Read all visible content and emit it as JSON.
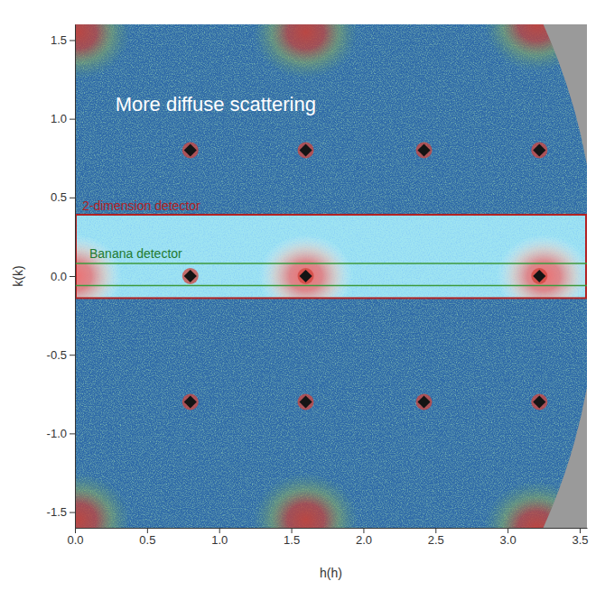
{
  "chart_data": {
    "type": "scatter",
    "x_label": "h(h)",
    "y_label": "k(k)",
    "xlim": [
      0,
      3.55
    ],
    "ylim": [
      -1.6,
      1.6
    ],
    "xticks": [
      {
        "value": 0,
        "label": "0.0"
      },
      0.5,
      {
        "value": 1,
        "label": "1.0"
      },
      1.5,
      {
        "value": 2,
        "label": "2.0"
      },
      2.5,
      {
        "value": 3,
        "label": "3.0"
      },
      3.5
    ],
    "yticks": [
      -1.5,
      {
        "value": -1,
        "label": "-1.0"
      },
      -0.5,
      {
        "value": 0,
        "label": "0.0"
      },
      0.5,
      {
        "value": 1,
        "label": "1.0"
      },
      1.5
    ],
    "coverage_radius": 3.62,
    "series": [
      {
        "marker": "diffuse",
        "color": "#c0443e",
        "x": [
          0.02,
          1.6,
          3.2,
          0.02,
          1.6,
          3.2
        ],
        "values": [
          1.55,
          1.55,
          1.6,
          -1.55,
          -1.55,
          -1.6
        ]
      },
      {
        "marker": "dot",
        "color": "#141414",
        "x": [
          0.8,
          1.6,
          2.42,
          3.22,
          0.8,
          1.6,
          2.42,
          3.22,
          0.8,
          1.6,
          3.22
        ],
        "values": [
          0.8,
          0.8,
          0.8,
          0.8,
          -0.8,
          -0.8,
          -0.8,
          -0.8,
          0,
          0,
          0
        ]
      }
    ],
    "regions": [
      {
        "label": "2-dimension detector",
        "color": "#b22222",
        "x": [
          0,
          3.55
        ],
        "y": [
          -0.14,
          0.39
        ],
        "maxima": {
          "color": "#f26b6b",
          "x": [
            0,
            1.6,
            3.25
          ],
          "y": [
            0,
            0,
            0
          ]
        }
      },
      {
        "label": "Banana detector",
        "color": "#3c9a3c",
        "y": [
          -0.06,
          0.08
        ]
      }
    ],
    "annotations": [
      {
        "text": "More diffuse scattering",
        "x": 0.28,
        "y": 1.05
      }
    ]
  }
}
